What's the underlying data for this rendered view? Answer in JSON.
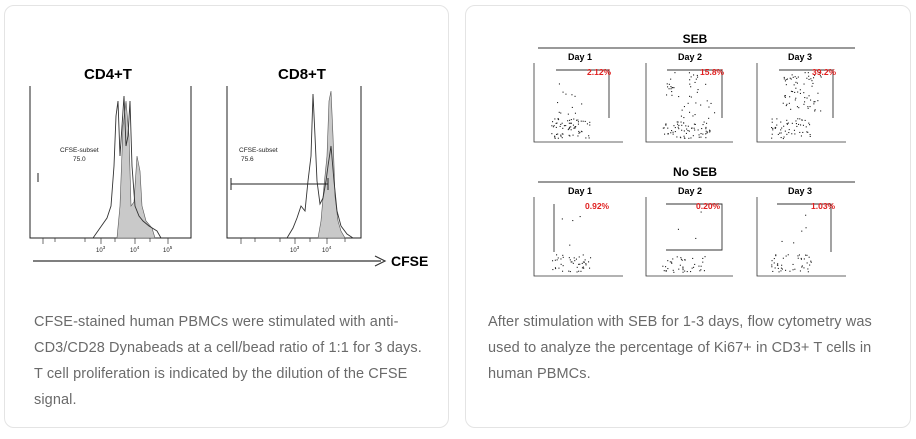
{
  "left_card": {
    "figure": {
      "panel_titles": [
        "CD4+T",
        "CD8+T"
      ],
      "gate_labels": [
        [
          "CFSE-subset",
          "75.0"
        ],
        [
          "CFSE-subset",
          "75.6"
        ]
      ],
      "x_axis_label": "CFSE",
      "tick_labels": [
        "10",
        "3",
        "10",
        "4",
        "10",
        "5"
      ]
    },
    "caption": "CFSE-stained human PBMCs were stimulated with anti-CD3/CD28 Dynabeads at a cell/bead ratio of 1:1 for 3 days. T cell proliferation is indicated by the dilution of the CFSE signal."
  },
  "right_card": {
    "figure": {
      "groups": [
        {
          "title": "SEB",
          "days": [
            "Day 1",
            "Day 2",
            "Day 3"
          ],
          "percentages": [
            "2.12%",
            "15.8%",
            "39.2%"
          ]
        },
        {
          "title": "No SEB",
          "days": [
            "Day 1",
            "Day 2",
            "Day 3"
          ],
          "percentages": [
            "0.92%",
            "0.20%",
            "1.03%"
          ]
        }
      ]
    },
    "caption": "After stimulation with SEB for 1-3 days, flow cytometry was used to analyze the percentage of Ki67+ in CD3+ T cells in human PBMCs."
  },
  "colors": {
    "percent_red": "#e02020",
    "histogram_gray": "#c9c9c9",
    "caption_gray": "#6a6a6a"
  }
}
